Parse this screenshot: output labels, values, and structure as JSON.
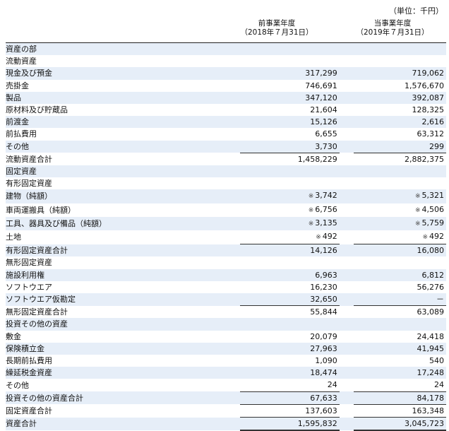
{
  "unit_label": "（単位：千円）",
  "headers": {
    "prev_title": "前事業年度",
    "prev_date": "（2018年７月31日）",
    "curr_title": "当事業年度",
    "curr_date": "（2019年７月31日）"
  },
  "rows": [
    {
      "label": "資産の部",
      "indent": 0,
      "prev": "",
      "curr": ""
    },
    {
      "label": "流動資産",
      "indent": 1,
      "prev": "",
      "curr": ""
    },
    {
      "label": "現金及び預金",
      "indent": 3,
      "prev": "317,299",
      "curr": "719,062"
    },
    {
      "label": "売掛金",
      "indent": 3,
      "prev": "746,691",
      "curr": "1,576,670"
    },
    {
      "label": "製品",
      "indent": 3,
      "prev": "347,120",
      "curr": "392,087"
    },
    {
      "label": "原材料及び貯蔵品",
      "indent": 3,
      "prev": "21,604",
      "curr": "128,325"
    },
    {
      "label": "前渡金",
      "indent": 3,
      "prev": "15,126",
      "curr": "2,616"
    },
    {
      "label": "前払費用",
      "indent": 3,
      "prev": "6,655",
      "curr": "63,312"
    },
    {
      "label": "その他",
      "indent": 3,
      "prev": "3,730",
      "curr": "299"
    },
    {
      "label": "流動資産合計",
      "indent": 3,
      "prev": "1,458,229",
      "curr": "2,882,375",
      "style": "total"
    },
    {
      "label": "固定資産",
      "indent": 1,
      "prev": "",
      "curr": ""
    },
    {
      "label": "有形固定資産",
      "indent": 2,
      "prev": "",
      "curr": ""
    },
    {
      "label": "建物（純額）",
      "indent": 4,
      "prev": "3,742",
      "curr": "5,321",
      "note": "※"
    },
    {
      "label": "車両運搬具（純額）",
      "indent": 4,
      "prev": "6,756",
      "curr": "4,506",
      "note": "※"
    },
    {
      "label": "工具、器具及び備品（純額）",
      "indent": 4,
      "prev": "3,135",
      "curr": "5,759",
      "note": "※"
    },
    {
      "label": "土地",
      "indent": 4,
      "prev": "492",
      "curr": "492",
      "note": "※"
    },
    {
      "label": "有形固定資産合計",
      "indent": 3,
      "prev": "14,126",
      "curr": "16,080",
      "style": "total"
    },
    {
      "label": "無形固定資産",
      "indent": 2,
      "prev": "",
      "curr": ""
    },
    {
      "label": "施設利用権",
      "indent": 4,
      "prev": "6,963",
      "curr": "6,812"
    },
    {
      "label": "ソフトウエア",
      "indent": 4,
      "prev": "16,230",
      "curr": "56,276"
    },
    {
      "label": "ソフトウエア仮勘定",
      "indent": 4,
      "prev": "32,650",
      "curr": "－"
    },
    {
      "label": "無形固定資産合計",
      "indent": 3,
      "prev": "55,844",
      "curr": "63,089",
      "style": "total"
    },
    {
      "label": "投資その他の資産",
      "indent": 2,
      "prev": "",
      "curr": ""
    },
    {
      "label": "敷金",
      "indent": 4,
      "prev": "20,079",
      "curr": "24,418"
    },
    {
      "label": "保険積立金",
      "indent": 4,
      "prev": "27,963",
      "curr": "41,945"
    },
    {
      "label": "長期前払費用",
      "indent": 4,
      "prev": "1,090",
      "curr": "540"
    },
    {
      "label": "繰延税金資産",
      "indent": 4,
      "prev": "18,474",
      "curr": "17,248"
    },
    {
      "label": "その他",
      "indent": 4,
      "prev": "24",
      "curr": "24"
    },
    {
      "label": "投資その他の資産合計",
      "indent": 4,
      "prev": "67,633",
      "curr": "84,178",
      "style": "total"
    },
    {
      "label": "固定資産合計",
      "indent": 3,
      "prev": "137,603",
      "curr": "163,348",
      "style": "total"
    },
    {
      "label": "資産合計",
      "indent": 1,
      "prev": "1,595,832",
      "curr": "3,045,723",
      "style": "grand"
    }
  ]
}
